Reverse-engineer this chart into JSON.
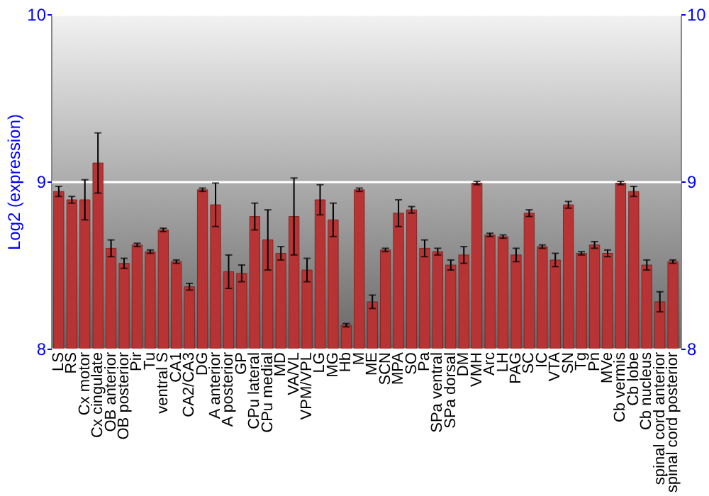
{
  "chart_data": {
    "type": "bar",
    "ylabel": "Log2 (expression)",
    "categories": [
      "LS",
      "RS",
      "Cx motor",
      "Cx cingulate",
      "OB anterior",
      "OB posterior",
      "Pir",
      "Tu",
      "ventral S",
      "CA1",
      "CA2/CA3",
      "DG",
      "A anterior",
      "A posterior",
      "GP",
      "CPu lateral",
      "CPu medial",
      "MD",
      "VA/VL",
      "VPM/VPL",
      "LG",
      "MG",
      "Hb",
      "M",
      "ME",
      "SCN",
      "MPA",
      "SO",
      "Pa",
      "SPa ventral",
      "SPa dorsal",
      "DM",
      "VMH",
      "Arc",
      "LH",
      "PAG",
      "SC",
      "IC",
      "VTA",
      "SN",
      "Tg",
      "Pn",
      "MVe",
      "Cb vermis",
      "Cb lobe",
      "Cb nucleus",
      "spinal cord anterior",
      "spinal cord posterior"
    ],
    "values": [
      8.94,
      8.89,
      8.89,
      9.11,
      8.6,
      8.51,
      8.62,
      8.58,
      8.71,
      8.52,
      8.37,
      8.95,
      8.86,
      8.46,
      8.45,
      8.79,
      8.65,
      8.57,
      8.79,
      8.47,
      8.89,
      8.77,
      8.14,
      8.95,
      8.28,
      8.59,
      8.81,
      8.83,
      8.6,
      8.58,
      8.5,
      8.56,
      8.99,
      8.68,
      8.67,
      8.56,
      8.81,
      8.61,
      8.53,
      8.86,
      8.57,
      8.62,
      8.57,
      8.99,
      8.94,
      8.5,
      8.28,
      8.52
    ],
    "errors": [
      0.03,
      0.02,
      0.12,
      0.18,
      0.05,
      0.03,
      0.01,
      0.01,
      0.01,
      0.01,
      0.02,
      0.01,
      0.13,
      0.1,
      0.05,
      0.08,
      0.18,
      0.04,
      0.23,
      0.07,
      0.09,
      0.1,
      0.01,
      0.01,
      0.04,
      0.01,
      0.08,
      0.02,
      0.05,
      0.02,
      0.03,
      0.05,
      0.01,
      0.01,
      0.01,
      0.04,
      0.02,
      0.01,
      0.04,
      0.02,
      0.01,
      0.02,
      0.02,
      0.01,
      0.03,
      0.03,
      0.06,
      0.01
    ],
    "color": "#b83434",
    "ylim": [
      8,
      10
    ],
    "yticks": [
      8,
      9,
      10
    ],
    "y2lim": [
      8,
      10
    ],
    "y2ticks": [
      8,
      9,
      10
    ],
    "grid": "y"
  }
}
